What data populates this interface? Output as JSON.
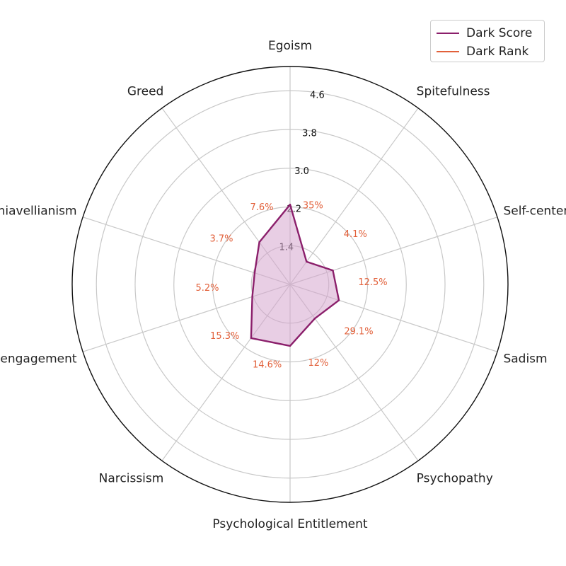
{
  "chart_data": {
    "type": "radar",
    "title": "",
    "categories": [
      "Egoism",
      "Spitefulness",
      "Self-centeredness",
      "Sadism",
      "Psychopathy",
      "Psychological Entitlement",
      "Narcissism",
      "Moral Disengagement",
      "Machiavellianism",
      "Greed"
    ],
    "radial_ticks": [
      "1.4",
      "2.2",
      "3.0",
      "3.8",
      "4.6"
    ],
    "radial_tick_values": [
      1.4,
      2.2,
      3.0,
      3.8,
      4.6
    ],
    "rlim": [
      0.6,
      5.1
    ],
    "grid": true,
    "legend_position": "top-right",
    "series": [
      {
        "name": "Dark Score",
        "color": "#8b1f6b",
        "fill": "#d6a6cd",
        "values": [
          2.25,
          1.18,
          1.53,
          1.66,
          1.47,
          1.87,
          1.97,
          1.42,
          1.37,
          1.68
        ]
      },
      {
        "name": "Dark Rank",
        "color": "#e2603a",
        "labels": [
          "35%",
          "4.1%",
          "12.5%",
          "29.1%",
          "12%",
          "14.6%",
          "15.3%",
          "5.2%",
          "3.7%",
          "7.6%"
        ]
      }
    ]
  }
}
